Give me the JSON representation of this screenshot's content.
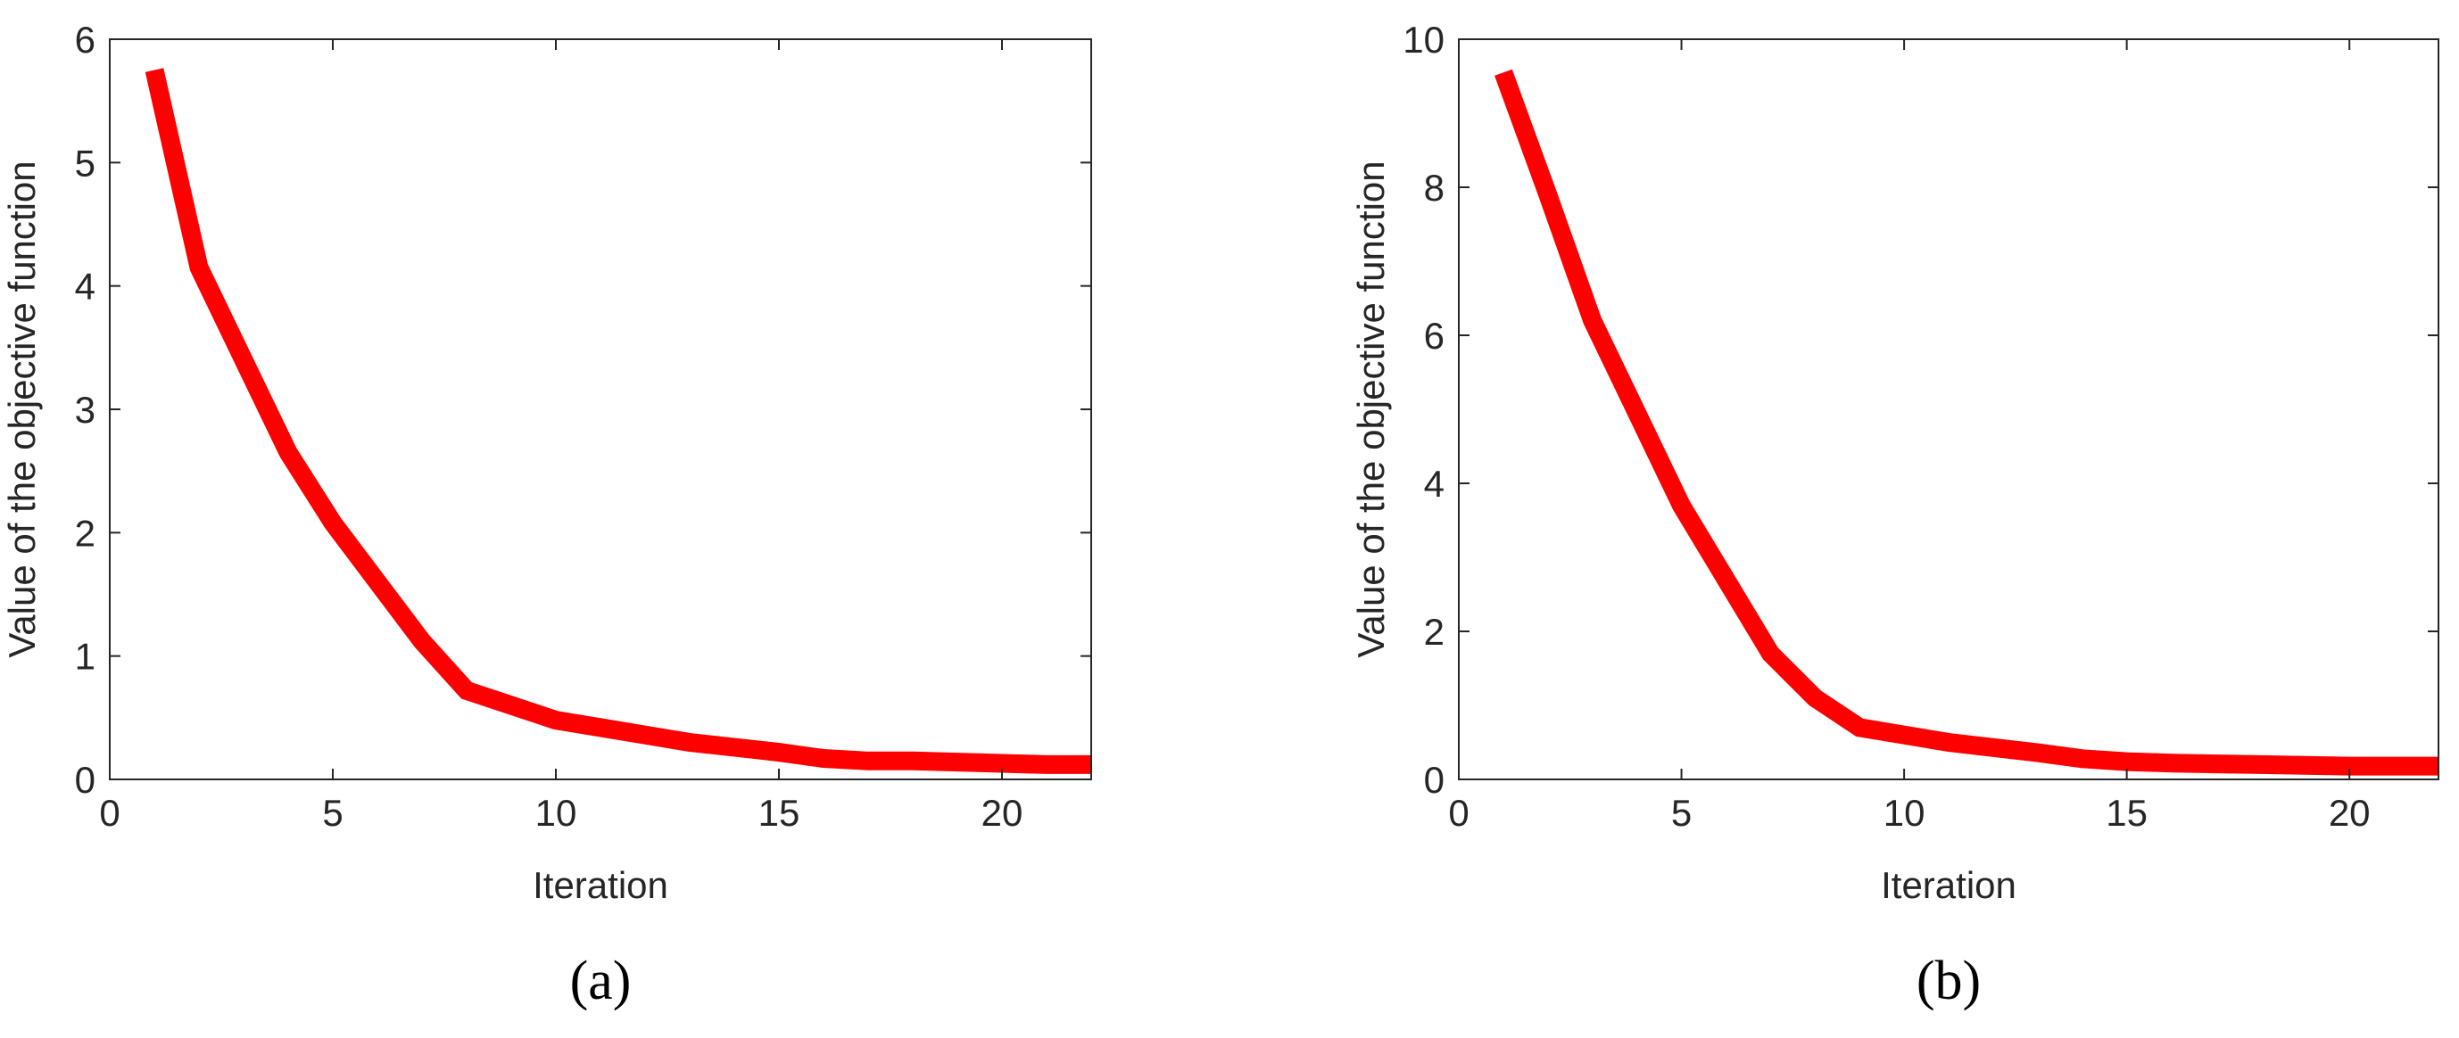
{
  "chart_data": [
    {
      "type": "line",
      "caption": "(a)",
      "x_label": "Iteration",
      "y_label": "Value of the objective function",
      "x": [
        1,
        2,
        3,
        4,
        5,
        6,
        7,
        8,
        9,
        10,
        11,
        12,
        13,
        14,
        15,
        16,
        17,
        18,
        19,
        20,
        21,
        22
      ],
      "series": [
        {
          "color": "#ff0000",
          "values": [
            5.75,
            4.15,
            3.4,
            2.65,
            2.08,
            1.6,
            1.12,
            0.72,
            0.6,
            0.48,
            0.42,
            0.36,
            0.3,
            0.26,
            0.22,
            0.17,
            0.15,
            0.15,
            0.14,
            0.13,
            0.12,
            0.12
          ]
        }
      ],
      "xlim": [
        0,
        22
      ],
      "xticks": [
        0,
        5,
        10,
        15,
        20
      ],
      "ylim": [
        0,
        6
      ],
      "yticks": [
        0,
        1,
        2,
        3,
        4,
        5,
        6
      ]
    },
    {
      "type": "line",
      "caption": "(b)",
      "x_label": "Iteration",
      "y_label": "Value of the objective function",
      "x": [
        1,
        2,
        3,
        4,
        5,
        6,
        7,
        8,
        9,
        10,
        11,
        12,
        13,
        14,
        15,
        16,
        17,
        18,
        19,
        20,
        21,
        22
      ],
      "series": [
        {
          "color": "#ff0000",
          "values": [
            9.55,
            7.9,
            6.2,
            4.95,
            3.7,
            2.7,
            1.7,
            1.1,
            0.7,
            0.6,
            0.5,
            0.43,
            0.36,
            0.28,
            0.24,
            0.22,
            0.21,
            0.2,
            0.19,
            0.18,
            0.18,
            0.18
          ]
        }
      ],
      "xlim": [
        0,
        22
      ],
      "xticks": [
        0,
        5,
        10,
        15,
        20
      ],
      "ylim": [
        0,
        10
      ],
      "yticks": [
        0,
        2,
        4,
        6,
        8,
        10
      ]
    }
  ]
}
